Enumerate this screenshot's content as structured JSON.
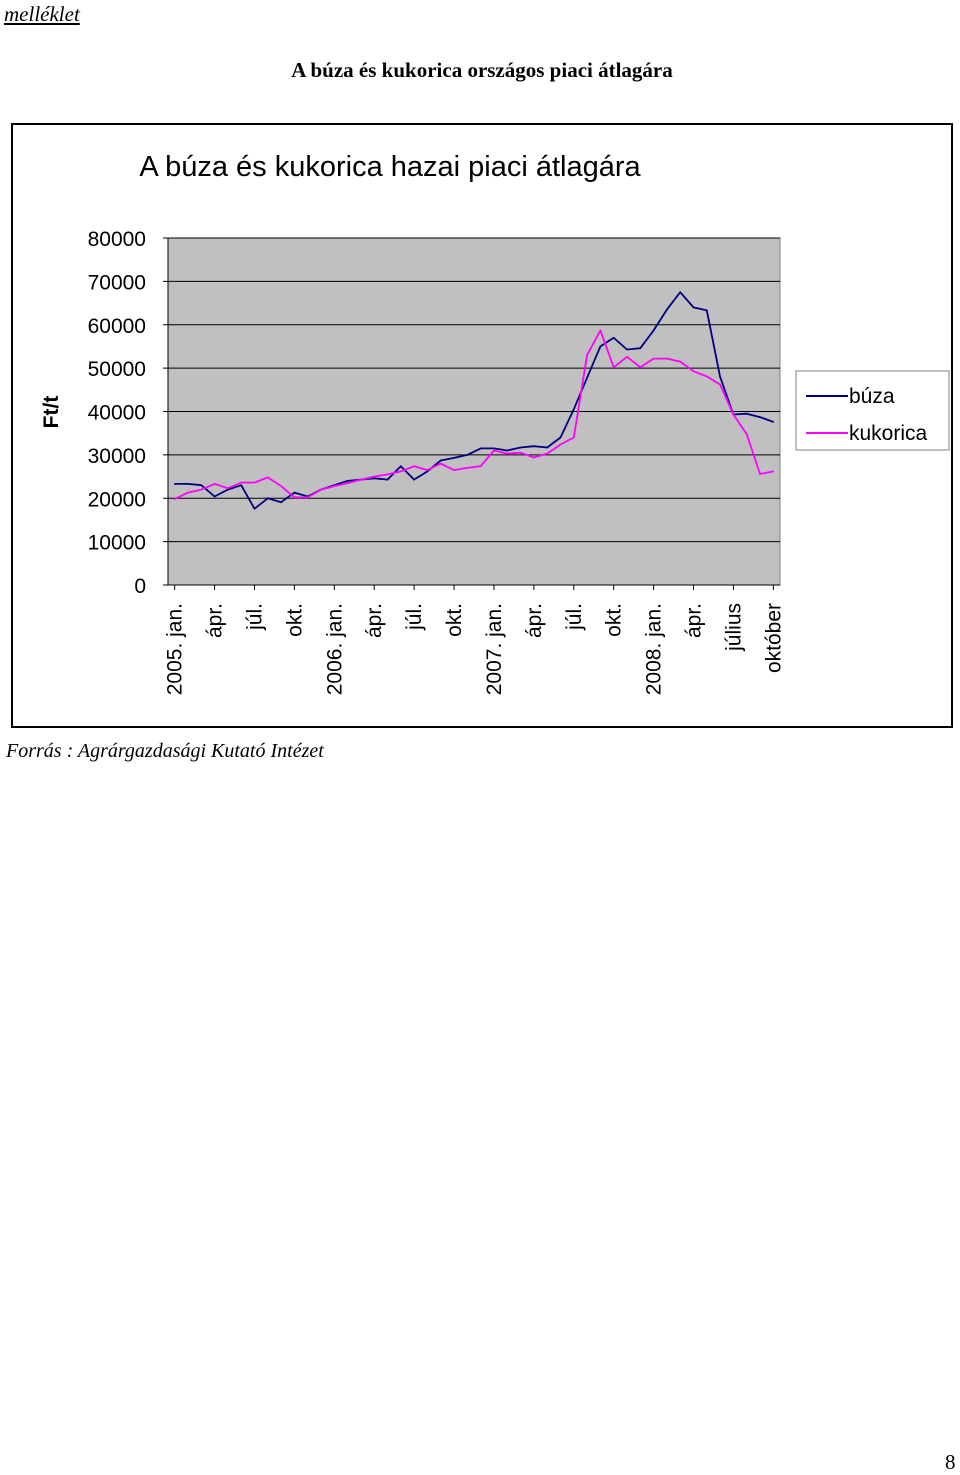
{
  "header": {
    "label": "melléklet",
    "title": "A búza és kukorica országos piaci átlagára"
  },
  "footer": {
    "source": "Forrás : Agrárgazdasági Kutató Intézet",
    "page_number": "8"
  },
  "chart_data": {
    "type": "line",
    "title": "A búza és kukorica hazai piaci átlagára",
    "xlabel": "",
    "ylabel": "Ft/t",
    "ylim": [
      0,
      80000
    ],
    "yticks": [
      0,
      10000,
      20000,
      30000,
      40000,
      50000,
      60000,
      70000,
      80000
    ],
    "x_tick_labels": [
      {
        "index": 0,
        "label": "2005. jan."
      },
      {
        "index": 3,
        "label": "ápr."
      },
      {
        "index": 6,
        "label": "júl."
      },
      {
        "index": 9,
        "label": "okt."
      },
      {
        "index": 12,
        "label": "2006. jan."
      },
      {
        "index": 15,
        "label": "ápr."
      },
      {
        "index": 18,
        "label": "júl."
      },
      {
        "index": 21,
        "label": "okt."
      },
      {
        "index": 24,
        "label": "2007. jan."
      },
      {
        "index": 27,
        "label": "ápr."
      },
      {
        "index": 30,
        "label": "júl."
      },
      {
        "index": 33,
        "label": "okt."
      },
      {
        "index": 36,
        "label": "2008. jan."
      },
      {
        "index": 39,
        "label": "ápr."
      },
      {
        "index": 42,
        "label": "július"
      },
      {
        "index": 45,
        "label": "október"
      }
    ],
    "n_points": 46,
    "plot_background": "#c0c0c0",
    "grid": true,
    "legend_position": "right",
    "series": [
      {
        "name": "búza",
        "color": "#000080",
        "values": [
          23300,
          23300,
          23000,
          20400,
          22000,
          23000,
          17600,
          20000,
          19100,
          21300,
          20400,
          22000,
          23000,
          24000,
          24300,
          24600,
          24300,
          27400,
          24300,
          26200,
          28700,
          29300,
          30000,
          31500,
          31500,
          31000,
          31700,
          32000,
          31700,
          34000,
          40500,
          47800,
          55000,
          57000,
          54300,
          54600,
          58700,
          63500,
          67500,
          64000,
          63300,
          48000,
          39300,
          39500,
          38700,
          37600
        ]
      },
      {
        "name": "kukorica",
        "color": "#ff00ff",
        "values": [
          19800,
          21300,
          22000,
          23300,
          22300,
          23600,
          23600,
          24800,
          22800,
          20200,
          20200,
          22000,
          22800,
          23500,
          24300,
          25000,
          25500,
          26200,
          27400,
          26500,
          28000,
          26500,
          27000,
          27400,
          31000,
          30300,
          30500,
          29400,
          30300,
          32400,
          34000,
          53000,
          58700,
          50200,
          52600,
          50200,
          52200,
          52200,
          51500,
          49300,
          48100,
          46200,
          39300,
          34800,
          25600,
          26200
        ]
      }
    ]
  }
}
